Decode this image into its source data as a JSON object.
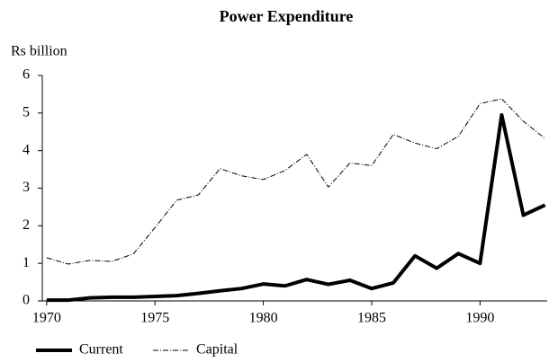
{
  "chart_data": {
    "type": "line",
    "title": "Power Expenditure",
    "y_label": "Rs billion",
    "x": [
      1970,
      1971,
      1972,
      1973,
      1974,
      1975,
      1976,
      1977,
      1978,
      1979,
      1980,
      1981,
      1982,
      1983,
      1984,
      1985,
      1986,
      1987,
      1988,
      1989,
      1990,
      1991,
      1992,
      1993
    ],
    "series": [
      {
        "name": "Current",
        "color": "#000000",
        "line_width": 4,
        "dash": "solid",
        "values": [
          0.02,
          0.02,
          0.08,
          0.1,
          0.1,
          0.12,
          0.14,
          0.2,
          0.27,
          0.33,
          0.45,
          0.4,
          0.57,
          0.44,
          0.55,
          0.33,
          0.48,
          1.2,
          0.87,
          1.26,
          1.0,
          4.95,
          2.28,
          2.55
        ]
      },
      {
        "name": "Capital",
        "color": "#000000",
        "line_width": 1,
        "dash": "dashdot",
        "values": [
          1.15,
          0.98,
          1.08,
          1.05,
          1.25,
          1.95,
          2.68,
          2.82,
          3.52,
          3.33,
          3.23,
          3.47,
          3.9,
          3.03,
          3.67,
          3.6,
          4.43,
          4.2,
          4.05,
          4.38,
          5.25,
          5.38,
          4.78,
          4.32
        ]
      }
    ],
    "xlim": [
      1969.8,
      1993.1
    ],
    "xticks": [
      1970,
      1975,
      1980,
      1985,
      1990
    ],
    "ylim": [
      0,
      6
    ],
    "yticks": [
      0,
      1,
      2,
      3,
      4,
      5,
      6
    ],
    "grid": false,
    "legend": "bottom-left"
  }
}
